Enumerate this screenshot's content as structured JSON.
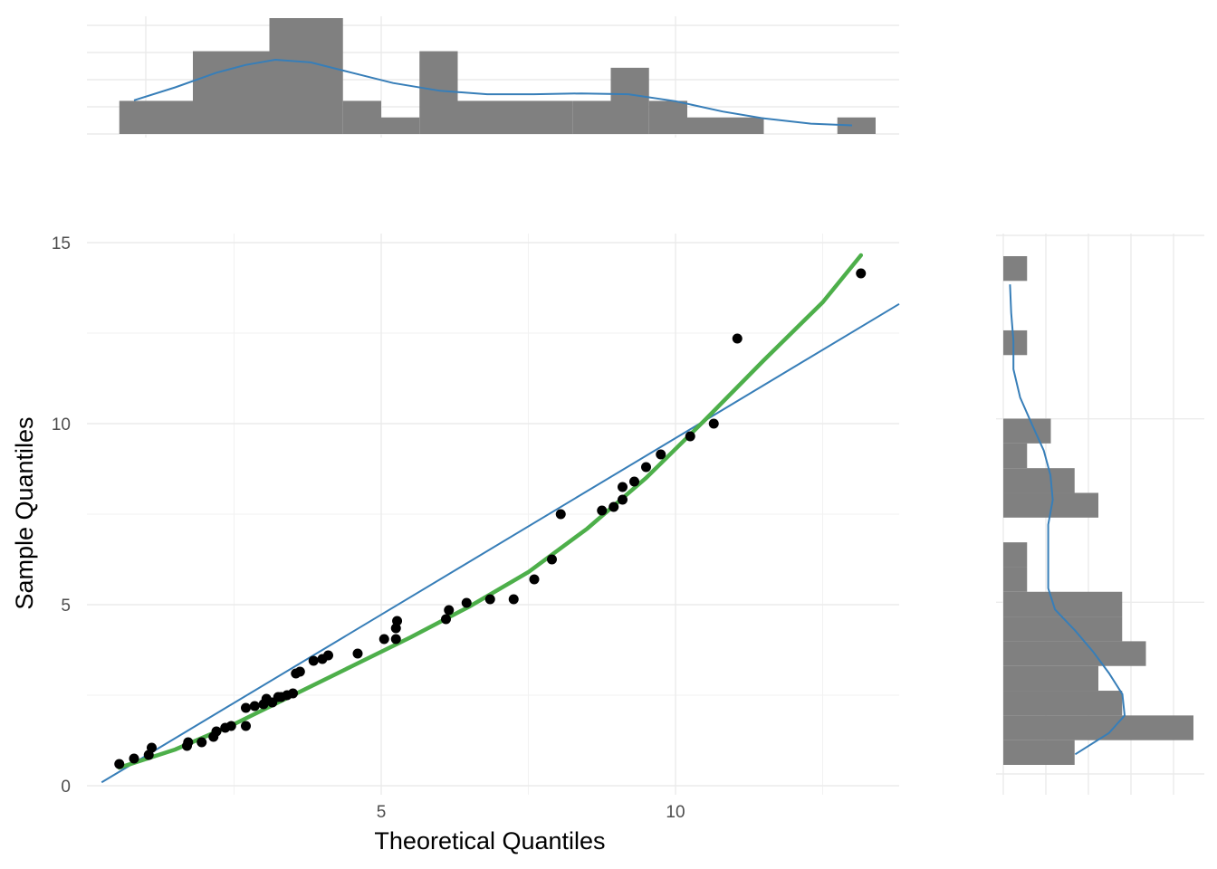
{
  "chart_data": [
    {
      "type": "scatter",
      "name": "qq-plot",
      "xlabel": "Theoretical Quantiles",
      "ylabel": "Sample Quantiles",
      "xlim": [
        0.0,
        13.8
      ],
      "ylim": [
        0.0,
        15.0
      ],
      "xticks": [
        5,
        10
      ],
      "yticks": [
        0,
        5,
        10,
        15
      ],
      "grid": true,
      "points": [
        [
          0.55,
          0.6
        ],
        [
          0.8,
          0.75
        ],
        [
          1.05,
          0.85
        ],
        [
          1.1,
          1.05
        ],
        [
          1.7,
          1.1
        ],
        [
          1.72,
          1.2
        ],
        [
          1.95,
          1.2
        ],
        [
          2.15,
          1.35
        ],
        [
          2.2,
          1.5
        ],
        [
          2.35,
          1.6
        ],
        [
          2.45,
          1.65
        ],
        [
          2.7,
          1.65
        ],
        [
          2.7,
          2.15
        ],
        [
          2.85,
          2.2
        ],
        [
          3.0,
          2.25
        ],
        [
          3.05,
          2.4
        ],
        [
          3.15,
          2.3
        ],
        [
          3.25,
          2.45
        ],
        [
          3.3,
          2.45
        ],
        [
          3.4,
          2.5
        ],
        [
          3.5,
          2.55
        ],
        [
          3.55,
          3.1
        ],
        [
          3.62,
          3.15
        ],
        [
          3.85,
          3.45
        ],
        [
          4.0,
          3.5
        ],
        [
          4.1,
          3.6
        ],
        [
          4.6,
          3.65
        ],
        [
          5.05,
          4.05
        ],
        [
          5.25,
          4.05
        ],
        [
          5.25,
          4.35
        ],
        [
          5.27,
          4.55
        ],
        [
          6.1,
          4.6
        ],
        [
          6.15,
          4.85
        ],
        [
          6.45,
          5.05
        ],
        [
          6.85,
          5.15
        ],
        [
          7.25,
          5.15
        ],
        [
          7.6,
          5.7
        ],
        [
          7.9,
          6.25
        ],
        [
          8.05,
          7.5
        ],
        [
          8.75,
          7.6
        ],
        [
          8.95,
          7.7
        ],
        [
          9.1,
          7.9
        ],
        [
          9.1,
          8.25
        ],
        [
          9.3,
          8.4
        ],
        [
          9.5,
          8.8
        ],
        [
          9.75,
          9.15
        ],
        [
          10.25,
          9.65
        ],
        [
          10.65,
          10.0
        ],
        [
          11.05,
          12.35
        ],
        [
          13.15,
          14.15
        ]
      ],
      "reference_line": {
        "intercept": -0.15,
        "slope": 0.975
      },
      "smooth_curve": [
        [
          0.55,
          0.5
        ],
        [
          1.5,
          1.0
        ],
        [
          2.5,
          1.7
        ],
        [
          3.5,
          2.5
        ],
        [
          4.5,
          3.3
        ],
        [
          5.5,
          4.1
        ],
        [
          6.5,
          4.95
        ],
        [
          7.5,
          5.9
        ],
        [
          8.5,
          7.1
        ],
        [
          9.5,
          8.5
        ],
        [
          10.5,
          10.1
        ],
        [
          11.5,
          11.75
        ],
        [
          12.5,
          13.35
        ],
        [
          13.15,
          14.65
        ]
      ],
      "colors": {
        "points": "#000000",
        "reference_line": "#377eb8",
        "smooth_curve": "#4daf4a"
      }
    },
    {
      "type": "bar",
      "name": "x-marginal-histogram",
      "orientation": "vertical",
      "bins": [
        [
          0.55,
          1.8,
          2
        ],
        [
          1.8,
          3.1,
          5
        ],
        [
          3.1,
          4.35,
          7
        ],
        [
          4.35,
          5.0,
          2
        ],
        [
          5.0,
          5.65,
          1
        ],
        [
          5.65,
          6.3,
          5
        ],
        [
          6.3,
          7.6,
          2
        ],
        [
          7.6,
          8.25,
          2
        ],
        [
          8.25,
          8.9,
          2
        ],
        [
          8.9,
          9.55,
          4
        ],
        [
          9.55,
          10.2,
          2
        ],
        [
          10.2,
          11.5,
          1
        ],
        [
          12.75,
          13.4,
          1
        ]
      ],
      "density_curve": [
        [
          0.8,
          1.95
        ],
        [
          1.5,
          2.7
        ],
        [
          2.2,
          3.55
        ],
        [
          2.7,
          4.0
        ],
        [
          3.2,
          4.3
        ],
        [
          3.8,
          4.15
        ],
        [
          4.5,
          3.55
        ],
        [
          5.2,
          2.95
        ],
        [
          6.0,
          2.5
        ],
        [
          6.8,
          2.3
        ],
        [
          7.6,
          2.3
        ],
        [
          8.4,
          2.35
        ],
        [
          9.2,
          2.3
        ],
        [
          10.0,
          1.9
        ],
        [
          10.8,
          1.3
        ],
        [
          11.5,
          0.9
        ],
        [
          12.3,
          0.6
        ],
        [
          13.0,
          0.5
        ]
      ],
      "colors": {
        "bars": "#808080",
        "density_curve": "#377eb8"
      }
    },
    {
      "type": "bar",
      "name": "y-marginal-histogram",
      "orientation": "horizontal",
      "bins": [
        [
          0.6,
          1.3,
          3
        ],
        [
          1.3,
          2.0,
          8
        ],
        [
          2.0,
          2.7,
          5
        ],
        [
          2.7,
          3.4,
          4
        ],
        [
          3.4,
          4.1,
          6
        ],
        [
          4.1,
          4.8,
          5
        ],
        [
          4.8,
          5.5,
          5
        ],
        [
          5.5,
          6.2,
          1
        ],
        [
          6.2,
          6.9,
          1
        ],
        [
          7.6,
          8.3,
          4
        ],
        [
          8.3,
          9.0,
          3
        ],
        [
          9.0,
          9.7,
          1
        ],
        [
          9.7,
          10.4,
          2
        ],
        [
          12.2,
          12.9,
          1
        ],
        [
          14.3,
          15.0,
          1
        ]
      ],
      "density_curve": [
        [
          0.9,
          3.2
        ],
        [
          1.5,
          4.7
        ],
        [
          2.0,
          5.4
        ],
        [
          2.6,
          5.3
        ],
        [
          3.2,
          4.7
        ],
        [
          3.8,
          4.0
        ],
        [
          4.4,
          3.2
        ],
        [
          5.0,
          2.3
        ],
        [
          5.6,
          2.0
        ],
        [
          6.2,
          2.0
        ],
        [
          6.8,
          2.0
        ],
        [
          7.4,
          2.0
        ],
        [
          8.1,
          2.2
        ],
        [
          8.8,
          2.1
        ],
        [
          9.5,
          1.8
        ],
        [
          10.2,
          1.3
        ],
        [
          11.0,
          0.75
        ],
        [
          11.8,
          0.45
        ],
        [
          12.6,
          0.45
        ],
        [
          13.4,
          0.35
        ],
        [
          14.2,
          0.3
        ]
      ],
      "colors": {
        "bars": "#808080",
        "density_curve": "#377eb8"
      }
    }
  ]
}
